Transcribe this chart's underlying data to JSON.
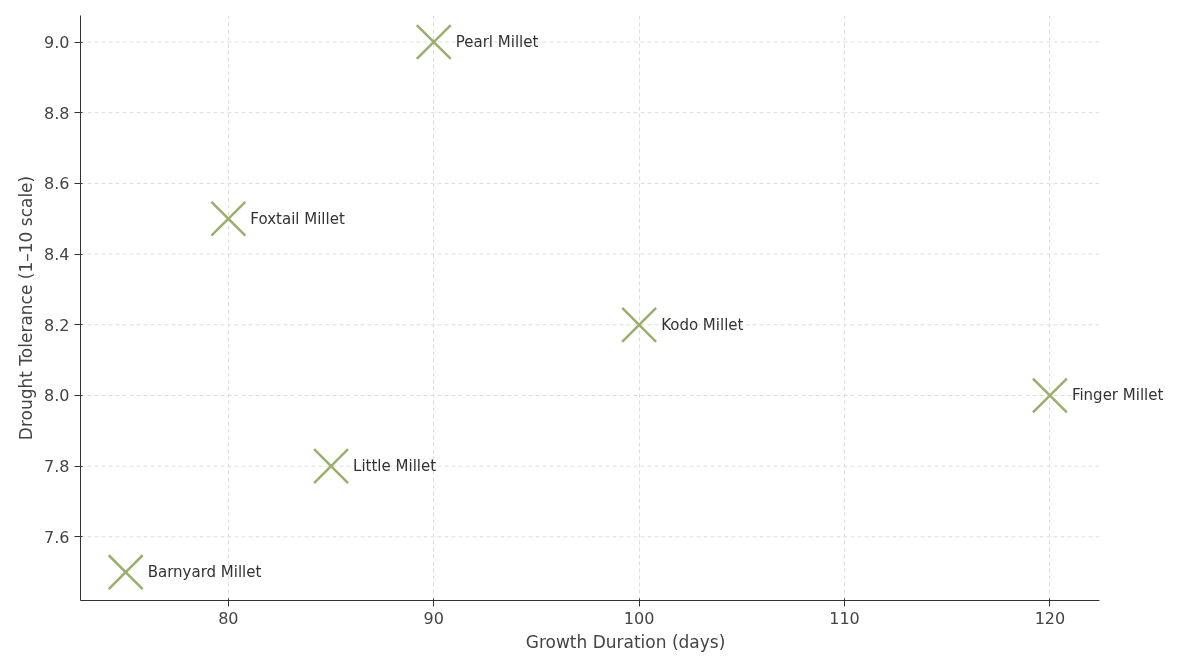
{
  "chart_data": {
    "type": "scatter",
    "xlabel": "Growth Duration (days)",
    "ylabel": "Drought Tolerance (1–10 scale)",
    "x": [
      90,
      80,
      100,
      120,
      85,
      75
    ],
    "series": [
      {
        "color": "#9aaf6a",
        "values": [
          9.0,
          8.5,
          8.2,
          8.0,
          7.8,
          7.5
        ]
      }
    ],
    "annotations": [
      {
        "text": "Pearl Millet",
        "x": 90,
        "y": 9.0
      },
      {
        "text": "Foxtail Millet",
        "x": 80,
        "y": 8.5
      },
      {
        "text": "Kodo Millet",
        "x": 100,
        "y": 8.2
      },
      {
        "text": "Finger Millet",
        "x": 120,
        "y": 8.0
      },
      {
        "text": "Little Millet",
        "x": 85,
        "y": 7.8
      },
      {
        "text": "Barnyard Millet",
        "x": 75,
        "y": 7.5
      }
    ],
    "xlim": [
      72.8,
      122.4
    ],
    "ylim": [
      7.42,
      9.075
    ],
    "xticks": [
      80,
      90,
      100,
      110,
      120
    ],
    "yticks": [
      {
        "value": 7.6,
        "label": "7.6"
      },
      {
        "value": 7.8,
        "label": "7.8"
      },
      {
        "value": 8.0,
        "label": "8.0"
      },
      {
        "value": 8.2,
        "label": "8.2"
      },
      {
        "value": 8.4,
        "label": "8.4"
      },
      {
        "value": 8.6,
        "label": "8.6"
      },
      {
        "value": 8.8,
        "label": "8.8"
      },
      {
        "value": 9.0,
        "label": "9.0"
      }
    ],
    "grid": true,
    "marker": "cross"
  }
}
